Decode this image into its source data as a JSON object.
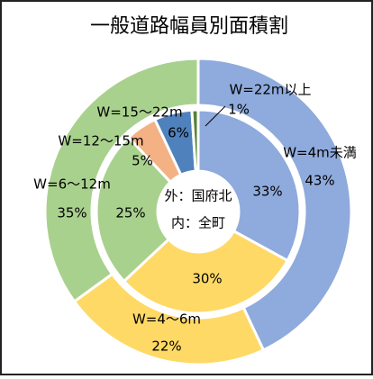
{
  "chart_data": {
    "type": "pie",
    "title": "一般道路幅員別面積割",
    "center_labels": [
      "外：国府北",
      "内：全町"
    ],
    "categories": [
      "W=4m未満",
      "W=4～6m",
      "W=6～12m",
      "W=12～15m",
      "W=15～22m",
      "W=22m以上"
    ],
    "series": [
      {
        "name": "国府北",
        "ring": "outer",
        "colors": [
          "#8faadc",
          "#ffd966",
          "#a9d18e",
          "#f4b183",
          "#4f81bd",
          "#548235"
        ],
        "values": [
          43,
          22,
          35,
          0,
          0,
          0
        ],
        "value_labels": [
          "43%",
          "22%",
          "35%",
          null,
          null,
          null
        ]
      },
      {
        "name": "全町",
        "ring": "inner",
        "colors": [
          "#8faadc",
          "#ffd966",
          "#a9d18e",
          "#f4b183",
          "#4f81bd",
          "#548235"
        ],
        "values": [
          33,
          30,
          25,
          5,
          6,
          1
        ],
        "value_labels": [
          "33%",
          "30%",
          "25%",
          "5%",
          "6%",
          "1%"
        ]
      }
    ]
  }
}
